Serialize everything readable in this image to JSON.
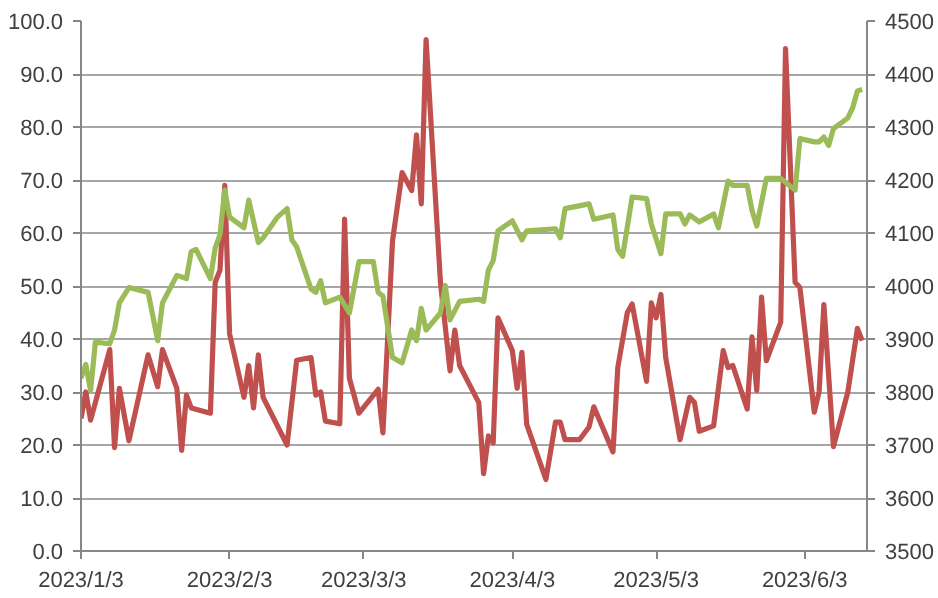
{
  "chart_data": {
    "type": "line",
    "grid": "y",
    "line_style": "solid",
    "marker": "none",
    "xlim": [
      "2023-01-03",
      "2023-06-16"
    ],
    "xticks": [
      {
        "value": "2023-01-03",
        "label": "2023/1/3"
      },
      {
        "value": "2023-02-03",
        "label": "2023/2/3"
      },
      {
        "value": "2023-03-03",
        "label": "2023/3/3"
      },
      {
        "value": "2023-04-03",
        "label": "2023/4/3"
      },
      {
        "value": "2023-05-03",
        "label": "2023/5/3"
      },
      {
        "value": "2023-06-03",
        "label": "2023/6/3"
      }
    ],
    "ylim": [
      0,
      100
    ],
    "yticks": [
      {
        "value": 0,
        "label": "0.0"
      },
      {
        "value": 10,
        "label": "10.0"
      },
      {
        "value": 20,
        "label": "20.0"
      },
      {
        "value": 30,
        "label": "30.0"
      },
      {
        "value": 40,
        "label": "40.0"
      },
      {
        "value": 50,
        "label": "50.0"
      },
      {
        "value": 60,
        "label": "60.0"
      },
      {
        "value": 70,
        "label": "70.0"
      },
      {
        "value": 80,
        "label": "80.0"
      },
      {
        "value": 90,
        "label": "90.0"
      },
      {
        "value": 100,
        "label": "100.0"
      }
    ],
    "y2lim": [
      3500,
      4500
    ],
    "y2ticks": [
      3500,
      3600,
      3700,
      3800,
      3900,
      4000,
      4100,
      4200,
      4300,
      4400,
      4500
    ],
    "series": [
      {
        "color": "#c0504d",
        "axis": "y",
        "x": [
          "2023-01-03",
          "2023-01-04",
          "2023-01-05",
          "2023-01-09",
          "2023-01-10",
          "2023-01-11",
          "2023-01-13",
          "2023-01-17",
          "2023-01-19",
          "2023-01-20",
          "2023-01-23",
          "2023-01-24",
          "2023-01-25",
          "2023-01-26",
          "2023-01-30",
          "2023-01-31",
          "2023-02-01",
          "2023-02-02",
          "2023-02-03",
          "2023-02-06",
          "2023-02-07",
          "2023-02-08",
          "2023-02-09",
          "2023-02-10",
          "2023-02-15",
          "2023-02-17",
          "2023-02-20",
          "2023-02-21",
          "2023-02-22",
          "2023-02-23",
          "2023-02-26",
          "2023-02-27",
          "2023-02-28",
          "2023-03-02",
          "2023-03-06",
          "2023-03-07",
          "2023-03-09",
          "2023-03-11",
          "2023-03-13",
          "2023-03-14",
          "2023-03-15",
          "2023-03-16",
          "2023-03-19",
          "2023-03-21",
          "2023-03-22",
          "2023-03-23",
          "2023-03-27",
          "2023-03-28",
          "2023-03-29",
          "2023-03-30",
          "2023-03-31",
          "2023-04-03",
          "2023-04-04",
          "2023-04-05",
          "2023-04-06",
          "2023-04-10",
          "2023-04-12",
          "2023-04-13",
          "2023-04-14",
          "2023-04-17",
          "2023-04-19",
          "2023-04-20",
          "2023-04-24",
          "2023-04-25",
          "2023-04-27",
          "2023-04-28",
          "2023-05-01",
          "2023-05-02",
          "2023-05-03",
          "2023-05-04",
          "2023-05-05",
          "2023-05-08",
          "2023-05-10",
          "2023-05-11",
          "2023-05-12",
          "2023-05-15",
          "2023-05-17",
          "2023-05-18",
          "2023-05-19",
          "2023-05-22",
          "2023-05-23",
          "2023-05-24",
          "2023-05-25",
          "2023-05-26",
          "2023-05-29",
          "2023-05-30",
          "2023-06-01",
          "2023-06-02",
          "2023-06-05",
          "2023-06-06",
          "2023-06-07",
          "2023-06-09",
          "2023-06-12",
          "2023-06-14",
          "2023-06-15"
        ],
        "values": [
          25,
          30,
          24.7,
          38,
          19.5,
          30.7,
          20.8,
          37,
          31,
          38,
          30.7,
          19,
          29.4,
          27,
          26,
          50.7,
          53,
          69,
          41,
          29,
          35,
          27,
          37,
          29,
          20,
          36,
          36.5,
          29.4,
          30,
          24.5,
          24,
          62.6,
          32.6,
          26,
          30.5,
          22.3,
          58.5,
          71.4,
          68,
          78.5,
          65.5,
          96.5,
          50.7,
          34,
          41.7,
          35,
          28,
          14.6,
          21.7,
          20.4,
          44,
          37.8,
          30.7,
          37.5,
          23.9,
          13.5,
          24.3,
          24.3,
          21,
          21,
          23.4,
          27.2,
          18.7,
          34.6,
          45,
          46.6,
          32,
          46.8,
          44,
          48.4,
          36.5,
          21,
          29,
          28,
          22.6,
          23.6,
          37.8,
          34.6,
          35,
          26.8,
          40.4,
          30.3,
          47.9,
          35.9,
          43.2,
          94.8,
          50.7,
          49.7,
          26.2,
          30,
          46.5,
          19.7,
          30,
          42,
          39.7
        ]
      },
      {
        "color": "#9bbb59",
        "axis": "y2",
        "x": [
          "2023-01-03",
          "2023-01-04",
          "2023-01-05",
          "2023-01-06",
          "2023-01-09",
          "2023-01-10",
          "2023-01-11",
          "2023-01-13",
          "2023-01-17",
          "2023-01-19",
          "2023-01-20",
          "2023-01-23",
          "2023-01-25",
          "2023-01-26",
          "2023-01-27",
          "2023-01-30",
          "2023-01-31",
          "2023-02-01",
          "2023-02-02",
          "2023-02-03",
          "2023-02-06",
          "2023-02-07",
          "2023-02-09",
          "2023-02-10",
          "2023-02-13",
          "2023-02-15",
          "2023-02-16",
          "2023-02-17",
          "2023-02-20",
          "2023-02-21",
          "2023-02-22",
          "2023-02-23",
          "2023-02-26",
          "2023-02-28",
          "2023-03-02",
          "2023-03-05",
          "2023-03-06",
          "2023-03-07",
          "2023-03-09",
          "2023-03-11",
          "2023-03-13",
          "2023-03-14",
          "2023-03-15",
          "2023-03-16",
          "2023-03-19",
          "2023-03-20",
          "2023-03-21",
          "2023-03-23",
          "2023-03-27",
          "2023-03-28",
          "2023-03-29",
          "2023-03-30",
          "2023-03-31",
          "2023-04-03",
          "2023-04-05",
          "2023-04-06",
          "2023-04-12",
          "2023-04-13",
          "2023-04-14",
          "2023-04-19",
          "2023-04-20",
          "2023-04-24",
          "2023-04-25",
          "2023-04-26",
          "2023-04-28",
          "2023-05-01",
          "2023-05-02",
          "2023-05-04",
          "2023-05-05",
          "2023-05-08",
          "2023-05-09",
          "2023-05-10",
          "2023-05-12",
          "2023-05-15",
          "2023-05-16",
          "2023-05-18",
          "2023-05-19",
          "2023-05-22",
          "2023-05-23",
          "2023-05-24",
          "2023-05-26",
          "2023-05-29",
          "2023-06-01",
          "2023-06-02",
          "2023-06-05",
          "2023-06-06",
          "2023-06-07",
          "2023-06-08",
          "2023-06-09",
          "2023-06-12",
          "2023-06-13",
          "2023-06-14",
          "2023-06-15"
        ],
        "values": [
          3826,
          3852,
          3803,
          3894,
          3891,
          3917,
          3968,
          3997,
          3988,
          3897,
          3968,
          4020,
          4014,
          4065,
          4069,
          4014,
          4072,
          4097,
          4181,
          4130,
          4110,
          4162,
          4082,
          4091,
          4130,
          4146,
          4087,
          4074,
          3994,
          3988,
          4010,
          3968,
          3979,
          3949,
          4046,
          4046,
          3988,
          3981,
          3865,
          3855,
          3917,
          3897,
          3958,
          3917,
          3949,
          4001,
          3936,
          3971,
          3975,
          3971,
          4030,
          4048,
          4104,
          4123,
          4087,
          4104,
          4108,
          4091,
          4146,
          4155,
          4126,
          4134,
          4069,
          4056,
          4168,
          4165,
          4117,
          4061,
          4136,
          4136,
          4117,
          4134,
          4121,
          4136,
          4110,
          4198,
          4190,
          4190,
          4143,
          4113,
          4203,
          4203,
          4181,
          4278,
          4272,
          4272,
          4281,
          4265,
          4297,
          4317,
          4336,
          4368,
          4371
        ]
      }
    ]
  }
}
